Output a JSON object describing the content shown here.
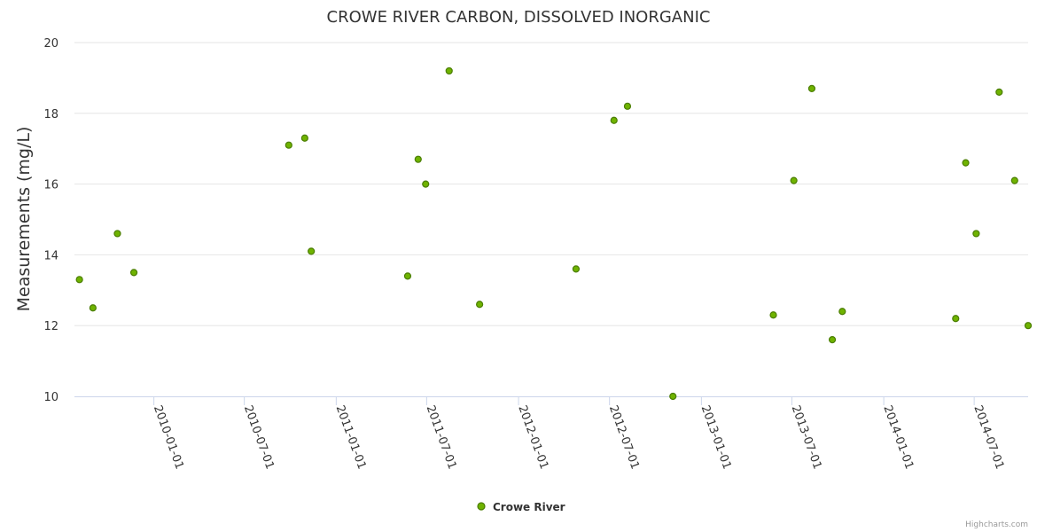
{
  "chart_data": {
    "type": "scatter",
    "title": "CROWE RIVER CARBON, DISSOLVED INORGANIC",
    "ylabel": "Measurements (mg/L)",
    "xlabel": "",
    "ylim": [
      10,
      20
    ],
    "yticks": [
      10,
      12,
      14,
      16,
      18,
      20
    ],
    "xlim": [
      "2009-07-26",
      "2014-10-17"
    ],
    "xticks": [
      "2010-01-01",
      "2010-07-01",
      "2011-01-01",
      "2011-07-01",
      "2012-01-01",
      "2012-07-01",
      "2013-01-01",
      "2013-07-01",
      "2014-01-01",
      "2014-07-01"
    ],
    "grid": true,
    "legend_position": "bottom-center",
    "series": [
      {
        "name": "Crowe River",
        "color": "#6fb300",
        "border_color": "#4a7d00",
        "points": [
          {
            "x": "2009-08-05",
            "y": 13.3
          },
          {
            "x": "2009-09-01",
            "y": 12.5
          },
          {
            "x": "2009-10-20",
            "y": 14.6
          },
          {
            "x": "2009-11-22",
            "y": 13.5
          },
          {
            "x": "2010-09-28",
            "y": 17.1
          },
          {
            "x": "2010-10-30",
            "y": 17.3
          },
          {
            "x": "2010-11-12",
            "y": 14.1
          },
          {
            "x": "2011-05-24",
            "y": 13.4
          },
          {
            "x": "2011-06-14",
            "y": 16.7
          },
          {
            "x": "2011-06-29",
            "y": 16.0
          },
          {
            "x": "2011-08-15",
            "y": 19.2
          },
          {
            "x": "2011-10-15",
            "y": 12.6
          },
          {
            "x": "2012-04-25",
            "y": 13.6
          },
          {
            "x": "2012-07-10",
            "y": 17.8
          },
          {
            "x": "2012-08-06",
            "y": 18.2
          },
          {
            "x": "2012-11-05",
            "y": 10.0
          },
          {
            "x": "2013-05-25",
            "y": 12.3
          },
          {
            "x": "2013-07-05",
            "y": 16.1
          },
          {
            "x": "2013-08-10",
            "y": 18.7
          },
          {
            "x": "2013-09-20",
            "y": 11.6
          },
          {
            "x": "2013-10-10",
            "y": 12.4
          },
          {
            "x": "2014-05-25",
            "y": 12.2
          },
          {
            "x": "2014-06-14",
            "y": 16.6
          },
          {
            "x": "2014-07-05",
            "y": 14.6
          },
          {
            "x": "2014-08-20",
            "y": 18.6
          },
          {
            "x": "2014-09-20",
            "y": 16.1
          },
          {
            "x": "2014-10-17",
            "y": 12.0
          }
        ]
      }
    ]
  },
  "credits": "Highcharts.com"
}
